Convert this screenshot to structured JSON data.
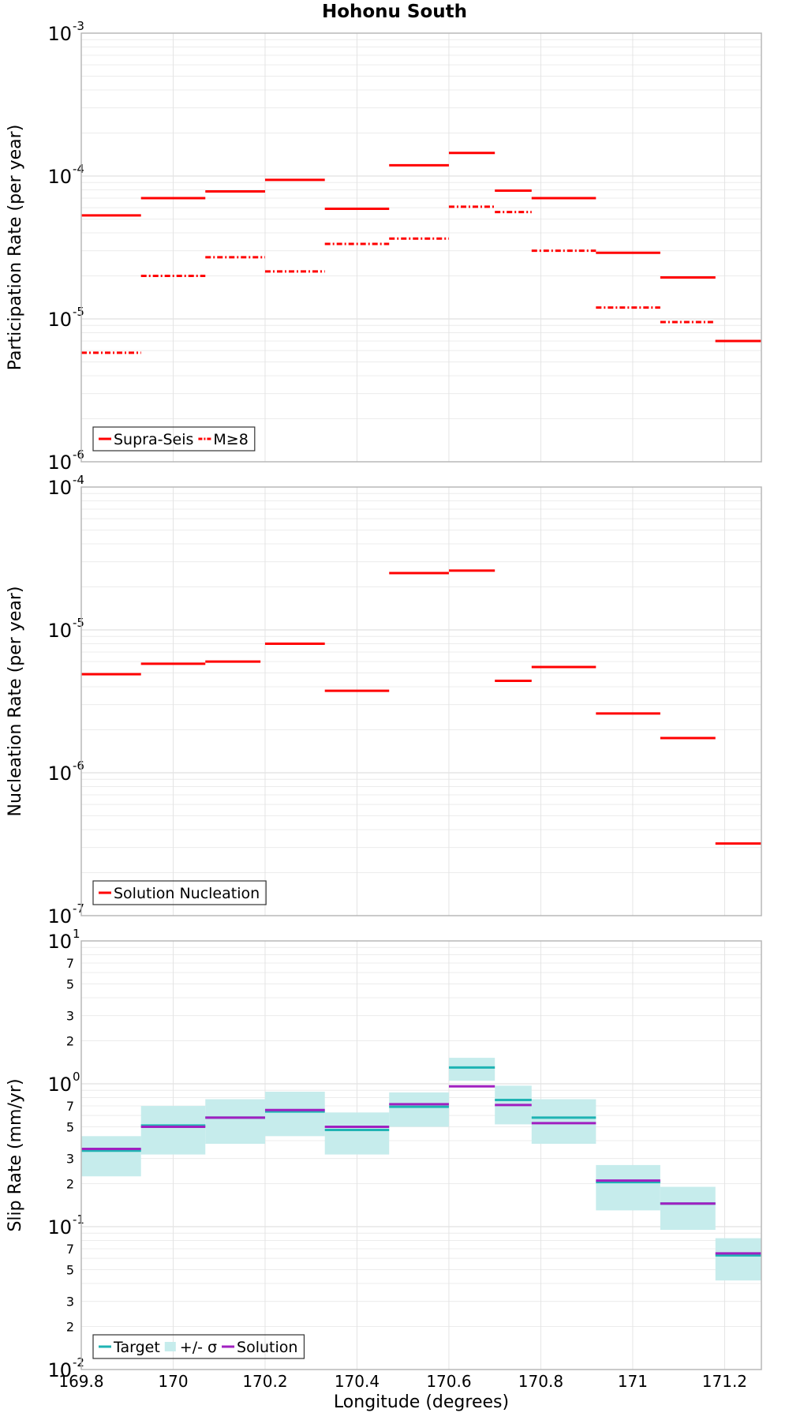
{
  "title": "Hohonu South",
  "chart_data": [
    {
      "type": "step",
      "ylabel": "Participation Rate (per year)",
      "yscale": "log",
      "ylim_exponents": [
        -6,
        -3
      ],
      "xlim": [
        169.8,
        171.28
      ],
      "grid": true,
      "legend_placement": "bottom-left",
      "legend": [
        {
          "label": "Supra-Seis",
          "style": "solid",
          "color": "#ff0000"
        },
        {
          "label": "M≥8",
          "style": "dashdot",
          "color": "#ff0000"
        }
      ],
      "series": [
        {
          "name": "Supra-Seis",
          "style": "solid",
          "color": "#ff0000",
          "segments": [
            {
              "x0": 169.8,
              "x1": 169.93,
              "y": 5.3e-05
            },
            {
              "x0": 169.93,
              "x1": 170.07,
              "y": 7e-05
            },
            {
              "x0": 170.07,
              "x1": 170.2,
              "y": 7.8e-05
            },
            {
              "x0": 170.2,
              "x1": 170.33,
              "y": 9.4e-05
            },
            {
              "x0": 170.33,
              "x1": 170.47,
              "y": 5.9e-05
            },
            {
              "x0": 170.47,
              "x1": 170.6,
              "y": 0.000119
            },
            {
              "x0": 170.6,
              "x1": 170.7,
              "y": 0.000145
            },
            {
              "x0": 170.7,
              "x1": 170.78,
              "y": 7.9e-05
            },
            {
              "x0": 170.78,
              "x1": 170.92,
              "y": 7e-05
            },
            {
              "x0": 170.92,
              "x1": 171.06,
              "y": 2.9e-05
            },
            {
              "x0": 171.06,
              "x1": 171.18,
              "y": 1.95e-05
            },
            {
              "x0": 171.18,
              "x1": 171.28,
              "y": 7e-06
            }
          ]
        },
        {
          "name": "M≥8",
          "style": "dashdot",
          "color": "#ff0000",
          "segments": [
            {
              "x0": 169.8,
              "x1": 169.93,
              "y": 5.8e-06
            },
            {
              "x0": 169.93,
              "x1": 170.07,
              "y": 2e-05
            },
            {
              "x0": 170.07,
              "x1": 170.2,
              "y": 2.7e-05
            },
            {
              "x0": 170.2,
              "x1": 170.33,
              "y": 2.15e-05
            },
            {
              "x0": 170.33,
              "x1": 170.47,
              "y": 3.35e-05
            },
            {
              "x0": 170.47,
              "x1": 170.6,
              "y": 3.65e-05
            },
            {
              "x0": 170.6,
              "x1": 170.7,
              "y": 6.1e-05
            },
            {
              "x0": 170.7,
              "x1": 170.78,
              "y": 5.6e-05
            },
            {
              "x0": 170.78,
              "x1": 170.92,
              "y": 3e-05
            },
            {
              "x0": 170.92,
              "x1": 171.06,
              "y": 1.2e-05
            },
            {
              "x0": 171.06,
              "x1": 171.18,
              "y": 9.5e-06
            },
            {
              "x0": 171.18,
              "x1": 171.28,
              "y": 7e-06
            }
          ]
        }
      ]
    },
    {
      "type": "step",
      "ylabel": "Nucleation Rate (per year)",
      "yscale": "log",
      "ylim_exponents": [
        -7,
        -4
      ],
      "xlim": [
        169.8,
        171.28
      ],
      "grid": true,
      "legend_placement": "bottom-left",
      "legend": [
        {
          "label": "Solution Nucleation",
          "style": "solid",
          "color": "#ff0000"
        }
      ],
      "series": [
        {
          "name": "Solution Nucleation",
          "style": "solid",
          "color": "#ff0000",
          "segments": [
            {
              "x0": 169.8,
              "x1": 169.93,
              "y": 4.9e-06
            },
            {
              "x0": 169.93,
              "x1": 170.07,
              "y": 5.8e-06
            },
            {
              "x0": 170.07,
              "x1": 170.19,
              "y": 6e-06
            },
            {
              "x0": 170.2,
              "x1": 170.33,
              "y": 8e-06
            },
            {
              "x0": 170.33,
              "x1": 170.47,
              "y": 3.75e-06
            },
            {
              "x0": 170.47,
              "x1": 170.6,
              "y": 2.5e-05
            },
            {
              "x0": 170.6,
              "x1": 170.7,
              "y": 2.6e-05
            },
            {
              "x0": 170.7,
              "x1": 170.78,
              "y": 4.4e-06
            },
            {
              "x0": 170.78,
              "x1": 170.92,
              "y": 5.5e-06
            },
            {
              "x0": 170.92,
              "x1": 171.06,
              "y": 2.6e-06
            },
            {
              "x0": 171.06,
              "x1": 171.18,
              "y": 1.75e-06
            },
            {
              "x0": 171.18,
              "x1": 171.28,
              "y": 3.2e-07
            }
          ]
        }
      ]
    },
    {
      "type": "step",
      "ylabel": "Slip Rate (mm/yr)",
      "xlabel": "Longitude (degrees)",
      "yscale": "log",
      "ylim_exponents": [
        -2,
        1
      ],
      "xlim": [
        169.8,
        171.28
      ],
      "x_ticks": [
        "169.8",
        "170",
        "170.2",
        "170.4",
        "170.6",
        "170.8",
        "171",
        "171.2"
      ],
      "minor_tick_labels": [
        "2",
        "3",
        "5",
        "7"
      ],
      "grid": true,
      "legend_placement": "bottom-left",
      "legend": [
        {
          "label": "Target",
          "style": "solid",
          "color": "#1fb3b3"
        },
        {
          "label": "+/- σ",
          "style": "band",
          "color": "#c6ecec"
        },
        {
          "label": "Solution",
          "style": "solid",
          "color": "#a020c0"
        }
      ],
      "bins": [
        {
          "x0": 169.8,
          "x1": 169.93,
          "target": 0.34,
          "sigma_low": 0.225,
          "sigma_high": 0.43,
          "solution": 0.35
        },
        {
          "x0": 169.93,
          "x1": 170.07,
          "target": 0.51,
          "sigma_low": 0.32,
          "sigma_high": 0.7,
          "solution": 0.5
        },
        {
          "x0": 170.07,
          "x1": 170.2,
          "target": 0.58,
          "sigma_low": 0.38,
          "sigma_high": 0.78,
          "solution": 0.58
        },
        {
          "x0": 170.2,
          "x1": 170.33,
          "target": 0.64,
          "sigma_low": 0.43,
          "sigma_high": 0.88,
          "solution": 0.655
        },
        {
          "x0": 170.33,
          "x1": 170.47,
          "target": 0.475,
          "sigma_low": 0.32,
          "sigma_high": 0.63,
          "solution": 0.5
        },
        {
          "x0": 170.47,
          "x1": 170.6,
          "target": 0.69,
          "sigma_low": 0.5,
          "sigma_high": 0.87,
          "solution": 0.72
        },
        {
          "x0": 170.6,
          "x1": 170.7,
          "target": 1.3,
          "sigma_low": 1.05,
          "sigma_high": 1.52,
          "solution": 0.96
        },
        {
          "x0": 170.7,
          "x1": 170.78,
          "target": 0.77,
          "sigma_low": 0.52,
          "sigma_high": 0.97,
          "solution": 0.71
        },
        {
          "x0": 170.78,
          "x1": 170.92,
          "target": 0.58,
          "sigma_low": 0.38,
          "sigma_high": 0.78,
          "solution": 0.53
        },
        {
          "x0": 170.92,
          "x1": 171.06,
          "target": 0.205,
          "sigma_low": 0.13,
          "sigma_high": 0.27,
          "solution": 0.21
        },
        {
          "x0": 171.06,
          "x1": 171.18,
          "target": 0.145,
          "sigma_low": 0.095,
          "sigma_high": 0.19,
          "solution": 0.145
        },
        {
          "x0": 171.18,
          "x1": 171.28,
          "target": 0.063,
          "sigma_low": 0.042,
          "sigma_high": 0.083,
          "solution": 0.065
        }
      ]
    }
  ]
}
